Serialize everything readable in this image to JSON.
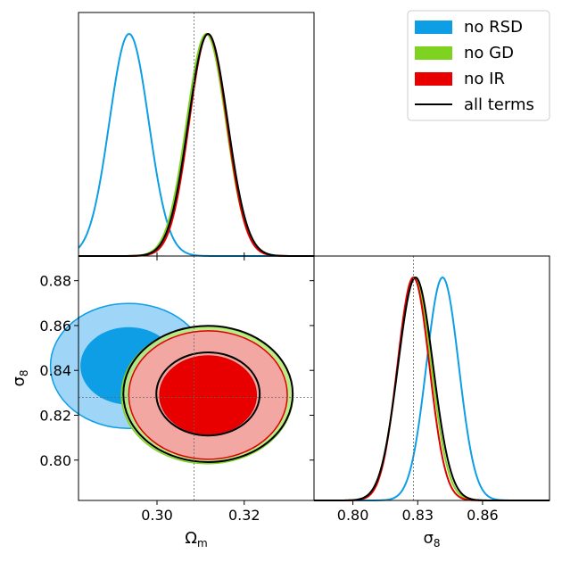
{
  "chart_data": [
    {
      "panel": "omega-m-1d",
      "type": "line",
      "x_param": "Omega_m",
      "x_range": [
        0.282,
        0.336
      ],
      "fiducial": 0.3085,
      "series": [
        {
          "name": "no RSD",
          "mean": 0.2936,
          "sigma": 0.0045,
          "color": "#0d9ee6"
        },
        {
          "name": "no GD",
          "mean": 0.3113,
          "sigma": 0.0045,
          "color": "#7ed321"
        },
        {
          "name": "no IR",
          "mean": 0.3117,
          "sigma": 0.0043,
          "color": "#dd0000"
        },
        {
          "name": "all terms",
          "mean": 0.3117,
          "sigma": 0.0045,
          "color": "#000000"
        }
      ]
    },
    {
      "panel": "omega-m-sigma8-2d",
      "type": "contour",
      "x_param": "Omega_m",
      "y_param": "sigma_8",
      "x_range": [
        0.282,
        0.336
      ],
      "y_range": [
        0.782,
        0.891
      ],
      "x_ticks": [
        "0.30",
        "0.32"
      ],
      "x_tick_values": [
        0.3,
        0.32
      ],
      "y_ticks": [
        "0.80",
        "0.82",
        "0.84",
        "0.86",
        "0.88"
      ],
      "y_tick_values": [
        0.8,
        0.82,
        0.84,
        0.86,
        0.88
      ],
      "xlabel_main": "Ω",
      "xlabel_sub": "m",
      "ylabel_main": "σ",
      "ylabel_sub": "8",
      "fiducial_x": 0.3085,
      "fiducial_y": 0.828,
      "series": [
        {
          "name": "no RSD",
          "center": [
            0.2935,
            0.842
          ],
          "sigma_x": 0.0072,
          "sigma_y": 0.0112,
          "color": "#0d9ee6",
          "outer_fill": "#9ad4f7",
          "inner_fill": "#0d9ee6"
        },
        {
          "name": "no GD",
          "center": [
            0.3115,
            0.829
          ],
          "sigma_x": 0.0079,
          "sigma_y": 0.0123,
          "color": "#7ed321",
          "outer_fill": "#b8ea84",
          "inner_fill": "#7ed321"
        },
        {
          "name": "no IR",
          "center": [
            0.3117,
            0.829
          ],
          "sigma_x": 0.0073,
          "sigma_y": 0.0115,
          "color": "#dd0000",
          "outer_fill": "#f5a3a3",
          "inner_fill": "#e80000"
        },
        {
          "name": "all terms",
          "center": [
            0.3117,
            0.8295
          ],
          "sigma_x": 0.0078,
          "sigma_y": 0.0122,
          "color": "#000000"
        }
      ]
    },
    {
      "panel": "sigma8-1d",
      "type": "line",
      "x_param": "sigma_8",
      "x_range": [
        0.782,
        0.891
      ],
      "x_ticks": [
        "0.80",
        "0.83",
        "0.86"
      ],
      "x_tick_values": [
        0.8,
        0.83,
        0.86
      ],
      "xlabel_main": "σ",
      "xlabel_sub": "8",
      "fiducial": 0.828,
      "series": [
        {
          "name": "no RSD",
          "mean": 0.8415,
          "sigma": 0.0075,
          "color": "#0d9ee6"
        },
        {
          "name": "no GD",
          "mean": 0.8285,
          "sigma": 0.0078,
          "color": "#7ed321"
        },
        {
          "name": "no IR",
          "mean": 0.828,
          "sigma": 0.0074,
          "color": "#dd0000"
        },
        {
          "name": "all terms",
          "mean": 0.829,
          "sigma": 0.0081,
          "color": "#000000"
        }
      ]
    }
  ],
  "legend": {
    "placement": "top-right",
    "items": [
      {
        "label": "no RSD",
        "kind": "patch",
        "color": "#0d9ee6"
      },
      {
        "label": "no GD",
        "kind": "patch",
        "color": "#7ed321"
      },
      {
        "label": "no IR",
        "kind": "patch",
        "color": "#e80000"
      },
      {
        "label": "all terms",
        "kind": "line",
        "color": "#000000"
      }
    ]
  }
}
